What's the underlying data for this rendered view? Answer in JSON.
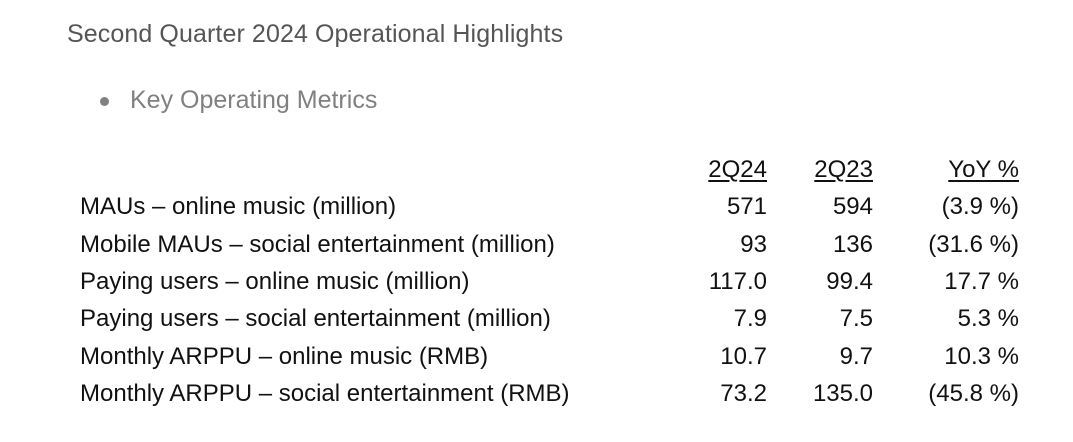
{
  "heading": "Second Quarter 2024 Operational Highlights",
  "bullet": "Key Operating Metrics",
  "table": {
    "columns": [
      "2Q24",
      "2Q23",
      "YoY %"
    ],
    "rows": [
      {
        "label": "MAUs – online music (million)",
        "q24": "571",
        "q23": "594",
        "yoy": "(3.9 %)"
      },
      {
        "label": "Mobile MAUs – social entertainment (million)",
        "q24": "93",
        "q23": "136",
        "yoy": "(31.6 %)"
      },
      {
        "label": "Paying users – online music (million)",
        "q24": "117.0",
        "q23": "99.4",
        "yoy": "17.7 %"
      },
      {
        "label": "Paying users – social entertainment (million)",
        "q24": "7.9",
        "q23": "7.5",
        "yoy": "5.3 %"
      },
      {
        "label": "Monthly ARPPU – online music (RMB)",
        "q24": "10.7",
        "q23": "9.7",
        "yoy": "10.3 %"
      },
      {
        "label": "Monthly ARPPU – social entertainment (RMB)",
        "q24": "73.2",
        "q23": "135.0",
        "yoy": "(45.8 %)"
      }
    ]
  }
}
